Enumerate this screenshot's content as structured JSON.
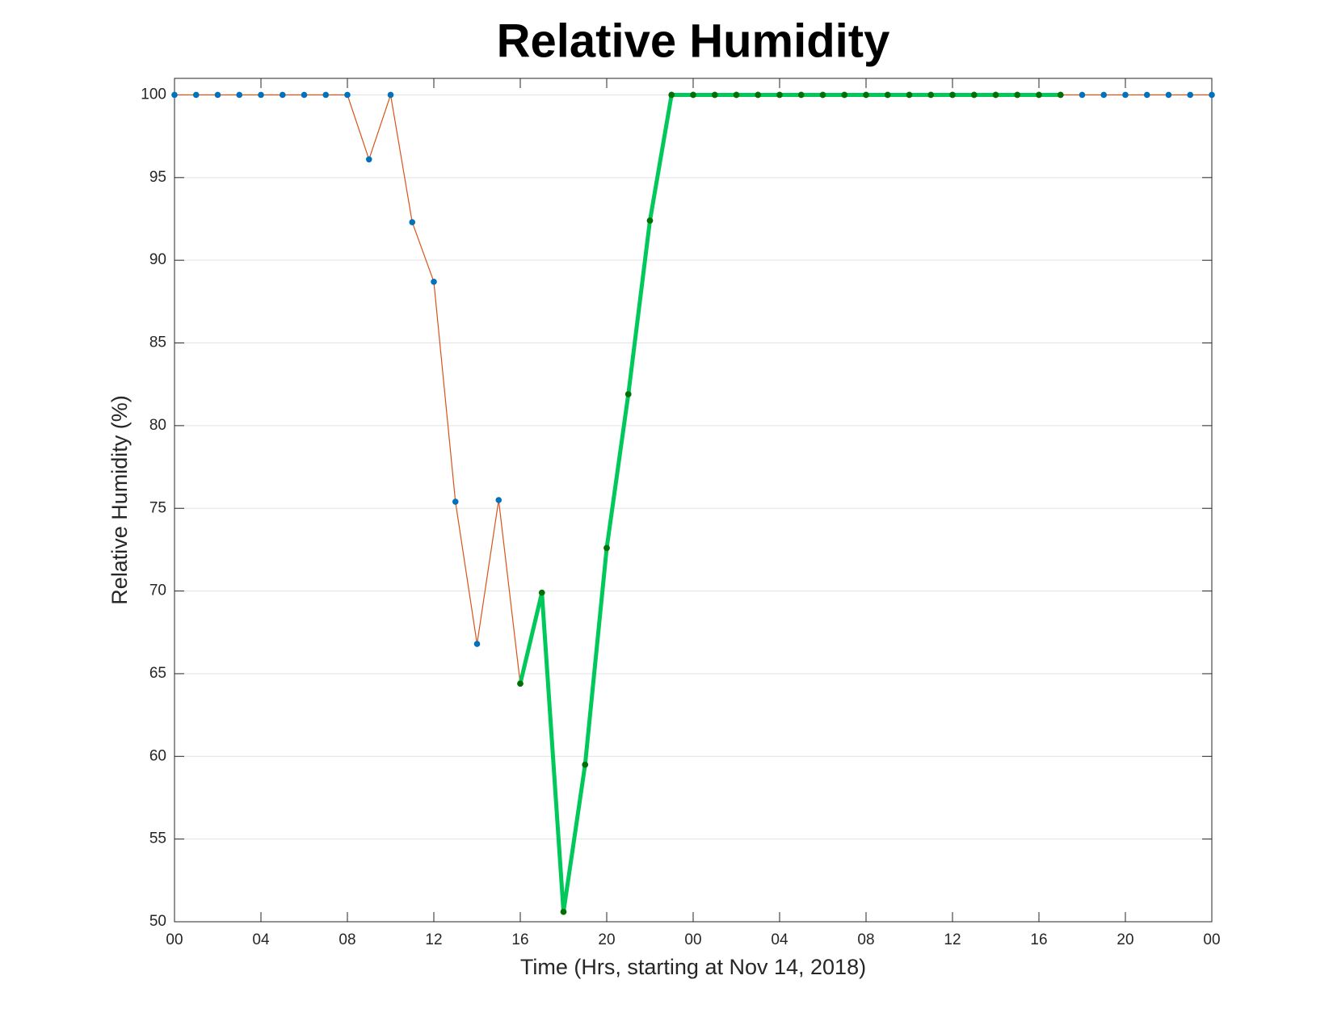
{
  "chart_data": {
    "type": "line",
    "title": "Relative Humidity",
    "xlabel": "Time (Hrs, starting at Nov 14, 2018)",
    "ylabel": "Relative Humidity (%)",
    "x": [
      0,
      1,
      2,
      3,
      4,
      5,
      6,
      7,
      8,
      9,
      10,
      11,
      12,
      13,
      14,
      15,
      16,
      17,
      18,
      19,
      20,
      21,
      22,
      23,
      24,
      25,
      26,
      27,
      28,
      29,
      30,
      31,
      32,
      33,
      34,
      35,
      36,
      37,
      38,
      39,
      40,
      41,
      42,
      43,
      44,
      45,
      46,
      47,
      48
    ],
    "series": [
      {
        "color": "#d95319",
        "marker_color": "#0072bd",
        "line_width": 1.2,
        "values": [
          100,
          100,
          100,
          100,
          100,
          100,
          100,
          100,
          100,
          96.1,
          100,
          92.3,
          88.7,
          75.4,
          66.8,
          75.5,
          64.4,
          69.9,
          50.6,
          59.5,
          72.6,
          81.9,
          92.4,
          100,
          100,
          100,
          100,
          100,
          100,
          100,
          100,
          100,
          100,
          100,
          100,
          100,
          100,
          100,
          100,
          100,
          100,
          100,
          100,
          100,
          100,
          100,
          100,
          100,
          100
        ]
      },
      {
        "color": "#00c85a",
        "marker_color": "#007000",
        "line_width": 5,
        "values": [
          null,
          null,
          null,
          null,
          null,
          null,
          null,
          null,
          null,
          null,
          null,
          null,
          null,
          null,
          null,
          null,
          64.4,
          69.9,
          50.6,
          59.5,
          72.6,
          81.9,
          92.4,
          100,
          100,
          100,
          100,
          100,
          100,
          100,
          100,
          100,
          100,
          100,
          100,
          100,
          100,
          100,
          100,
          100,
          100,
          100,
          null,
          null,
          null,
          null,
          null,
          null,
          null
        ]
      }
    ],
    "xlim": [
      0,
      48
    ],
    "xticks": [
      {
        "value": 0,
        "label": "00"
      },
      {
        "value": 4,
        "label": "04"
      },
      {
        "value": 8,
        "label": "08"
      },
      {
        "value": 12,
        "label": "12"
      },
      {
        "value": 16,
        "label": "16"
      },
      {
        "value": 20,
        "label": "20"
      },
      {
        "value": 24,
        "label": "00"
      },
      {
        "value": 28,
        "label": "04"
      },
      {
        "value": 32,
        "label": "08"
      },
      {
        "value": 36,
        "label": "12"
      },
      {
        "value": 40,
        "label": "16"
      },
      {
        "value": 44,
        "label": "20"
      },
      {
        "value": 48,
        "label": "00"
      }
    ],
    "ylim": [
      50,
      101
    ],
    "yticks": [
      50,
      55,
      60,
      65,
      70,
      75,
      80,
      85,
      90,
      95,
      100
    ],
    "grid": true
  }
}
